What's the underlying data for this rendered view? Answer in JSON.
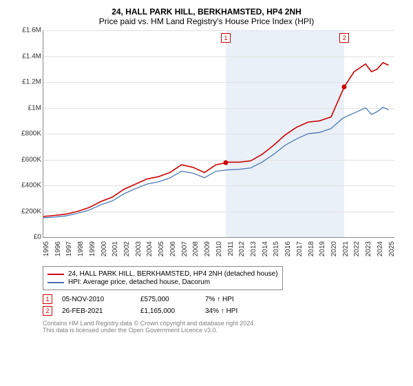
{
  "title": "24, HALL PARK HILL, BERKHAMSTED, HP4 2NH",
  "subtitle": "Price paid vs. HM Land Registry's House Price Index (HPI)",
  "chart": {
    "type": "line",
    "background_color": "#ffffff",
    "shaded_band_color": "#eaf0f7",
    "grid_color": "#e0e0e0",
    "xlim": [
      1995,
      2025.5
    ],
    "ylim": [
      0,
      1600000
    ],
    "ytick_step": 200000,
    "yticks": [
      "£0",
      "£200K",
      "£400K",
      "£600K",
      "£800K",
      "£1M",
      "£1.2M",
      "£1.4M",
      "£1.6M"
    ],
    "xticks": [
      "1995",
      "1996",
      "1997",
      "1998",
      "1999",
      "2000",
      "2001",
      "2002",
      "2003",
      "2004",
      "2005",
      "2006",
      "2007",
      "2008",
      "2009",
      "2010",
      "2011",
      "2012",
      "2013",
      "2014",
      "2015",
      "2016",
      "2017",
      "2018",
      "2019",
      "2020",
      "2021",
      "2022",
      "2023",
      "2024",
      "2025"
    ],
    "shaded_start": 2010.85,
    "shaded_end": 2021.15,
    "series": {
      "price_paid": {
        "label": "24, HALL PARK HILL, BERKHAMSTED, HP4 2NH (detached house)",
        "color": "#cc0000",
        "line_width": 1.6,
        "data": [
          [
            1995,
            160000
          ],
          [
            1996,
            168000
          ],
          [
            1997,
            178000
          ],
          [
            1998,
            200000
          ],
          [
            1999,
            230000
          ],
          [
            2000,
            275000
          ],
          [
            2001,
            310000
          ],
          [
            2002,
            370000
          ],
          [
            2003,
            410000
          ],
          [
            2004,
            450000
          ],
          [
            2005,
            468000
          ],
          [
            2006,
            500000
          ],
          [
            2007,
            560000
          ],
          [
            2008,
            540000
          ],
          [
            2009,
            500000
          ],
          [
            2010,
            560000
          ],
          [
            2010.85,
            575000
          ],
          [
            2011,
            580000
          ],
          [
            2012,
            580000
          ],
          [
            2013,
            590000
          ],
          [
            2014,
            640000
          ],
          [
            2015,
            710000
          ],
          [
            2016,
            790000
          ],
          [
            2017,
            850000
          ],
          [
            2018,
            890000
          ],
          [
            2019,
            900000
          ],
          [
            2020,
            930000
          ],
          [
            2021.15,
            1165000
          ],
          [
            2022,
            1280000
          ],
          [
            2023,
            1340000
          ],
          [
            2023.5,
            1280000
          ],
          [
            2024,
            1300000
          ],
          [
            2024.5,
            1350000
          ],
          [
            2025,
            1330000
          ]
        ]
      },
      "hpi": {
        "label": "HPI: Average price, detached house, Dacorum",
        "color": "#4070b0",
        "line_width": 1.2,
        "data": [
          [
            1995,
            150000
          ],
          [
            1996,
            155000
          ],
          [
            1997,
            165000
          ],
          [
            1998,
            185000
          ],
          [
            1999,
            210000
          ],
          [
            2000,
            250000
          ],
          [
            2001,
            280000
          ],
          [
            2002,
            335000
          ],
          [
            2003,
            375000
          ],
          [
            2004,
            410000
          ],
          [
            2005,
            428000
          ],
          [
            2006,
            458000
          ],
          [
            2007,
            510000
          ],
          [
            2008,
            495000
          ],
          [
            2009,
            460000
          ],
          [
            2010,
            510000
          ],
          [
            2011,
            520000
          ],
          [
            2012,
            525000
          ],
          [
            2013,
            535000
          ],
          [
            2014,
            580000
          ],
          [
            2015,
            640000
          ],
          [
            2016,
            710000
          ],
          [
            2017,
            760000
          ],
          [
            2018,
            800000
          ],
          [
            2019,
            810000
          ],
          [
            2020,
            840000
          ],
          [
            2021,
            920000
          ],
          [
            2022,
            960000
          ],
          [
            2023,
            1000000
          ],
          [
            2023.5,
            950000
          ],
          [
            2024,
            970000
          ],
          [
            2024.5,
            1005000
          ],
          [
            2025,
            985000
          ]
        ]
      }
    },
    "sale_points": [
      {
        "x": 2010.85,
        "y": 575000,
        "color": "#cc0000",
        "marker_num": "1"
      },
      {
        "x": 2021.15,
        "y": 1165000,
        "color": "#cc0000",
        "marker_num": "2"
      }
    ]
  },
  "legend": {
    "items": [
      {
        "color": "#cc0000",
        "label": "24, HALL PARK HILL, BERKHAMSTED, HP4 2NH (detached house)"
      },
      {
        "color": "#4070b0",
        "label": "HPI: Average price, detached house, Dacorum"
      }
    ]
  },
  "sales": [
    {
      "num": "1",
      "date": "05-NOV-2010",
      "price": "£575,000",
      "hpi": "7% ↑ HPI"
    },
    {
      "num": "2",
      "date": "26-FEB-2021",
      "price": "£1,165,000",
      "hpi": "34% ↑ HPI"
    }
  ],
  "footer": {
    "line1": "Contains HM Land Registry data © Crown copyright and database right 2024.",
    "line2": "This data is licensed under the Open Government Licence v3.0."
  }
}
